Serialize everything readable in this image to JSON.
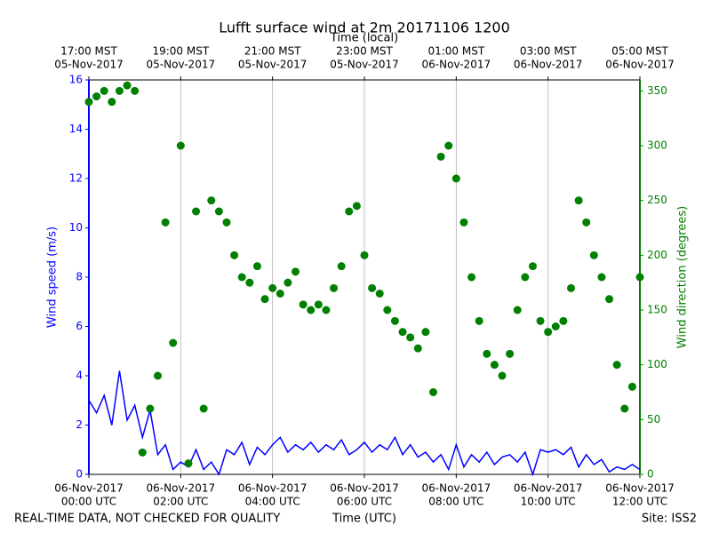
{
  "chart_data": {
    "type": "line",
    "title": "Lufft surface wind at 2m 20171106 1200",
    "x2label": "Time (local)",
    "xlabel": "Time (UTC)",
    "ylabel": "Wind speed (m/s)",
    "y2label": "Wind direction (degrees)",
    "footer_left": "REAL-TIME DATA, NOT CHECKED FOR QUALITY",
    "footer_right": "Site: ISS2",
    "xlim": [
      "2017-11-06 00:00",
      "2017-11-06 12:00"
    ],
    "xticks": [
      {
        "value": "2017-11-06 00:00",
        "label": [
          "06-Nov-2017",
          "00:00 UTC"
        ]
      },
      {
        "value": "2017-11-06 02:00",
        "label": [
          "06-Nov-2017",
          "02:00 UTC"
        ]
      },
      {
        "value": "2017-11-06 04:00",
        "label": [
          "06-Nov-2017",
          "04:00 UTC"
        ]
      },
      {
        "value": "2017-11-06 06:00",
        "label": [
          "06-Nov-2017",
          "06:00 UTC"
        ]
      },
      {
        "value": "2017-11-06 08:00",
        "label": [
          "06-Nov-2017",
          "08:00 UTC"
        ]
      },
      {
        "value": "2017-11-06 10:00",
        "label": [
          "06-Nov-2017",
          "10:00 UTC"
        ]
      },
      {
        "value": "2017-11-06 12:00",
        "label": [
          "06-Nov-2017",
          "12:00 UTC"
        ]
      }
    ],
    "x2ticks": [
      {
        "value": "2017-11-06 00:00",
        "label": [
          "17:00 MST",
          "05-Nov-2017"
        ]
      },
      {
        "value": "2017-11-06 02:00",
        "label": [
          "19:00 MST",
          "05-Nov-2017"
        ]
      },
      {
        "value": "2017-11-06 04:00",
        "label": [
          "21:00 MST",
          "05-Nov-2017"
        ]
      },
      {
        "value": "2017-11-06 06:00",
        "label": [
          "23:00 MST",
          "05-Nov-2017"
        ]
      },
      {
        "value": "2017-11-06 08:00",
        "label": [
          "01:00 MST",
          "06-Nov-2017"
        ]
      },
      {
        "value": "2017-11-06 10:00",
        "label": [
          "03:00 MST",
          "06-Nov-2017"
        ]
      },
      {
        "value": "2017-11-06 12:00",
        "label": [
          "05:00 MST",
          "06-Nov-2017"
        ]
      }
    ],
    "ylim": [
      0,
      16
    ],
    "yticks": [
      0,
      2,
      4,
      6,
      8,
      10,
      12,
      14,
      16
    ],
    "y2lim": [
      0,
      360
    ],
    "y2ticks": [
      0,
      50,
      100,
      150,
      200,
      250,
      300,
      350
    ],
    "grid": true,
    "x": [
      "2017-11-06 00:00",
      "2017-11-06 00:10",
      "2017-11-06 00:20",
      "2017-11-06 00:30",
      "2017-11-06 00:40",
      "2017-11-06 00:50",
      "2017-11-06 01:00",
      "2017-11-06 01:10",
      "2017-11-06 01:20",
      "2017-11-06 01:30",
      "2017-11-06 01:40",
      "2017-11-06 01:50",
      "2017-11-06 02:00",
      "2017-11-06 02:10",
      "2017-11-06 02:20",
      "2017-11-06 02:30",
      "2017-11-06 02:40",
      "2017-11-06 02:50",
      "2017-11-06 03:00",
      "2017-11-06 03:10",
      "2017-11-06 03:20",
      "2017-11-06 03:30",
      "2017-11-06 03:40",
      "2017-11-06 03:50",
      "2017-11-06 04:00",
      "2017-11-06 04:10",
      "2017-11-06 04:20",
      "2017-11-06 04:30",
      "2017-11-06 04:40",
      "2017-11-06 04:50",
      "2017-11-06 05:00",
      "2017-11-06 05:10",
      "2017-11-06 05:20",
      "2017-11-06 05:30",
      "2017-11-06 05:40",
      "2017-11-06 05:50",
      "2017-11-06 06:00",
      "2017-11-06 06:10",
      "2017-11-06 06:20",
      "2017-11-06 06:30",
      "2017-11-06 06:40",
      "2017-11-06 06:50",
      "2017-11-06 07:00",
      "2017-11-06 07:10",
      "2017-11-06 07:20",
      "2017-11-06 07:30",
      "2017-11-06 07:40",
      "2017-11-06 07:50",
      "2017-11-06 08:00",
      "2017-11-06 08:10",
      "2017-11-06 08:20",
      "2017-11-06 08:30",
      "2017-11-06 08:40",
      "2017-11-06 08:50",
      "2017-11-06 09:00",
      "2017-11-06 09:10",
      "2017-11-06 09:20",
      "2017-11-06 09:30",
      "2017-11-06 09:40",
      "2017-11-06 09:50",
      "2017-11-06 10:00",
      "2017-11-06 10:10",
      "2017-11-06 10:20",
      "2017-11-06 10:30",
      "2017-11-06 10:40",
      "2017-11-06 10:50",
      "2017-11-06 11:00",
      "2017-11-06 11:10",
      "2017-11-06 11:20",
      "2017-11-06 11:30",
      "2017-11-06 11:40",
      "2017-11-06 11:50",
      "2017-11-06 12:00"
    ],
    "series": [
      {
        "name": "Wind speed",
        "color": "#0000ff",
        "axis": "y",
        "kind": "line",
        "values": [
          3.0,
          2.5,
          3.2,
          2.0,
          4.2,
          2.2,
          2.8,
          1.5,
          2.6,
          0.8,
          1.2,
          0.2,
          0.5,
          0.3,
          1.0,
          0.2,
          0.5,
          0.0,
          1.0,
          0.8,
          1.3,
          0.4,
          1.1,
          0.8,
          1.2,
          1.5,
          0.9,
          1.2,
          1.0,
          1.3,
          0.9,
          1.2,
          1.0,
          1.4,
          0.8,
          1.0,
          1.3,
          0.9,
          1.2,
          1.0,
          1.5,
          0.8,
          1.2,
          0.7,
          0.9,
          0.5,
          0.8,
          0.2,
          1.2,
          0.3,
          0.8,
          0.5,
          0.9,
          0.4,
          0.7,
          0.8,
          0.5,
          0.9,
          0.0,
          1.0,
          0.9,
          1.0,
          0.8,
          1.1,
          0.3,
          0.8,
          0.4,
          0.6,
          0.1,
          0.3,
          0.2,
          0.4,
          0.2
        ]
      },
      {
        "name": "Wind direction",
        "color": "#008000",
        "axis": "y2",
        "kind": "scatter",
        "values": [
          340,
          345,
          350,
          340,
          350,
          355,
          350,
          20,
          60,
          90,
          230,
          120,
          300,
          10,
          240,
          60,
          250,
          240,
          230,
          200,
          180,
          175,
          190,
          160,
          170,
          165,
          175,
          185,
          155,
          150,
          155,
          150,
          170,
          190,
          240,
          245,
          200,
          170,
          165,
          150,
          140,
          130,
          125,
          115,
          130,
          75,
          290,
          300,
          270,
          230,
          180,
          140,
          110,
          100,
          90,
          110,
          150,
          180,
          190,
          140,
          130,
          135,
          140,
          170,
          250,
          230,
          200,
          180,
          160,
          100,
          60,
          80,
          180
        ]
      }
    ]
  }
}
